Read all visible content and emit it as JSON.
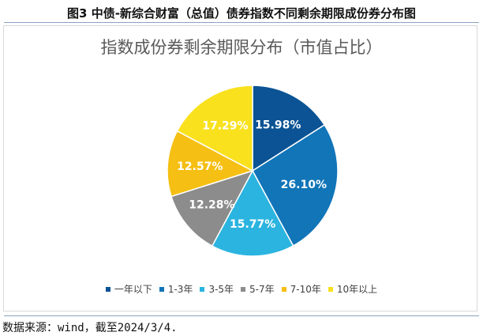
{
  "figure_caption": "图3 中债-新综合财富（总值）债券指数不同剩余期限成份券分布图",
  "source_note": "数据来源：wind，截至2024/3/4.",
  "chart_data": {
    "type": "pie",
    "title": "指数成份券剩余期限分布（市值占比）",
    "categories": [
      "一年以下",
      "1-3年",
      "3-5年",
      "5-7年",
      "7-10年",
      "10年以上"
    ],
    "values": [
      15.98,
      26.1,
      15.77,
      12.28,
      12.57,
      17.29
    ],
    "labels": [
      "15.98%",
      "26.10%",
      "15.77%",
      "12.28%",
      "12.57%",
      "17.29%"
    ],
    "colors": [
      "#0b5394",
      "#1175b8",
      "#2bb4e0",
      "#8c8c8c",
      "#f5bf14",
      "#f9e11e"
    ],
    "legend_position": "bottom"
  }
}
